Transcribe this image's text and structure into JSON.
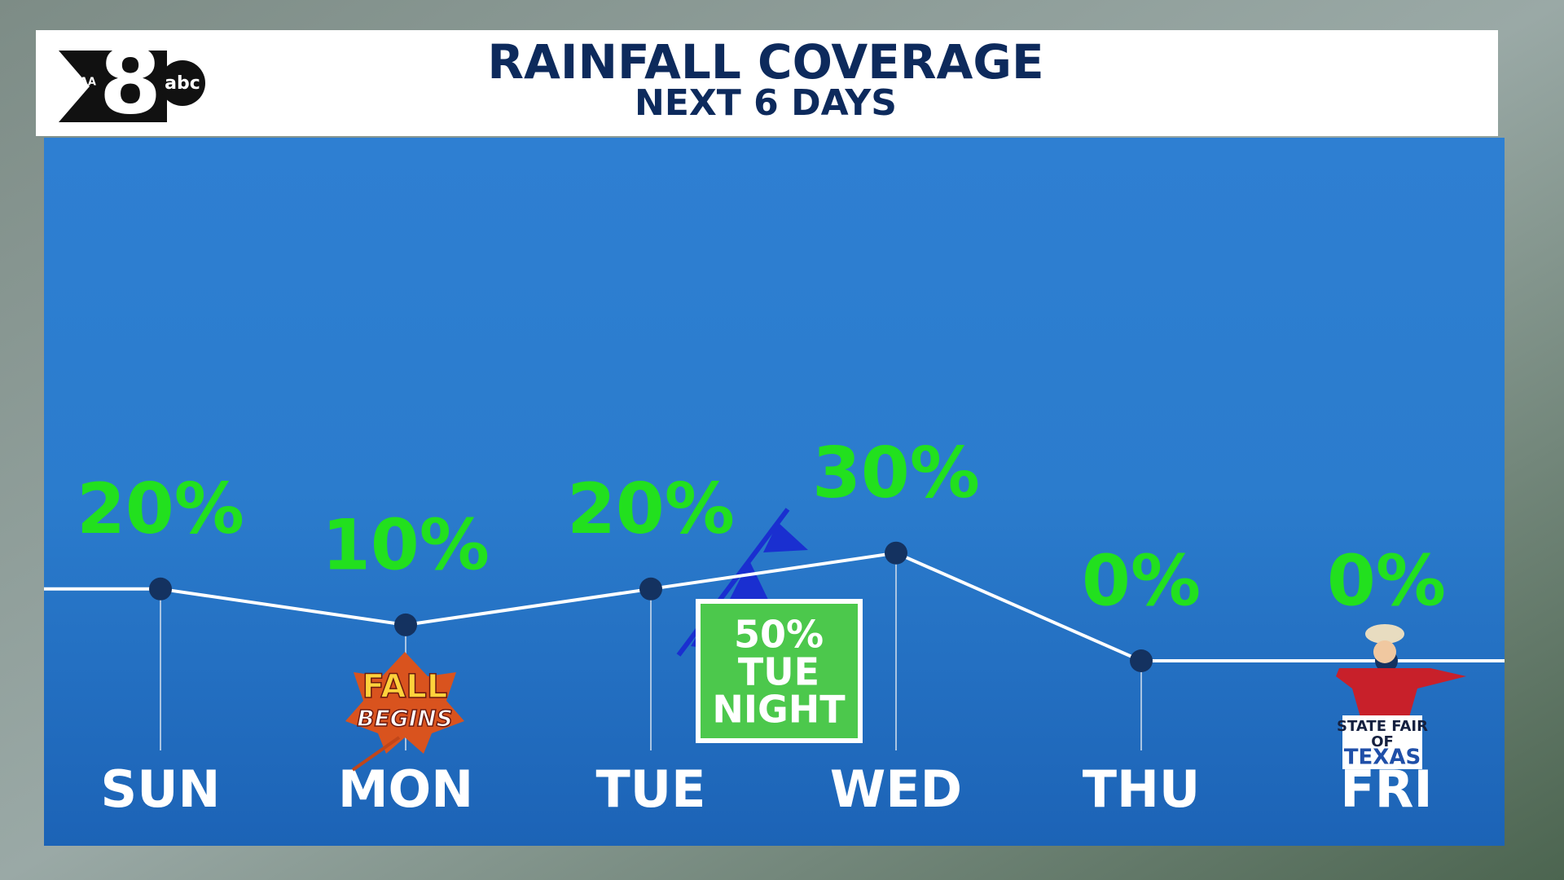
{
  "logo": {
    "station": "WFAA",
    "number": "8",
    "network": "abc"
  },
  "chart_data": {
    "type": "line",
    "title": "RAINFALL COVERAGE",
    "subtitle": "NEXT 6 DAYS",
    "categories": [
      "SUN",
      "MON",
      "TUE",
      "WED",
      "THU",
      "FRI"
    ],
    "series": [
      {
        "values": [
          20,
          10,
          20,
          30,
          0,
          0
        ],
        "value_labels": [
          "20%",
          "10%",
          "20%",
          "30%",
          "0%",
          "0%"
        ],
        "color": "#ffffff",
        "marker_color": "#143260",
        "label_color": "#22e01e"
      }
    ],
    "ylim": [
      0,
      100
    ],
    "annotations": [
      {
        "name": "front-note",
        "lines": [
          "50%",
          "TUE",
          "NIGHT"
        ]
      },
      {
        "name": "fall",
        "lines": [
          "FALL",
          "BEGINS"
        ]
      },
      {
        "name": "fair",
        "lines": [
          "STATE FAIR",
          "OF",
          "TEXAS"
        ]
      }
    ]
  }
}
